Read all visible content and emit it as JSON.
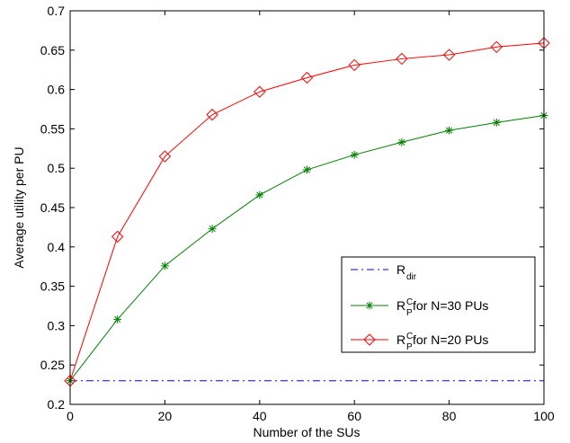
{
  "chart_data": {
    "type": "line",
    "xlabel": "Number of the SUs",
    "ylabel": "Average utility per PU",
    "xlim": [
      0,
      100
    ],
    "ylim": [
      0.2,
      0.7
    ],
    "xticks": [
      0,
      20,
      40,
      60,
      80,
      100
    ],
    "yticks": [
      0.2,
      0.25,
      0.3,
      0.35,
      0.4,
      0.45,
      0.5,
      0.55,
      0.6,
      0.65,
      0.7
    ],
    "xtick_labels": [
      "0",
      "20",
      "40",
      "60",
      "80",
      "100"
    ],
    "ytick_labels": [
      "0.2",
      "0.25",
      "0.3",
      "0.35",
      "0.4",
      "0.45",
      "0.5",
      "0.55",
      "0.6",
      "0.65",
      "0.7"
    ],
    "grid": false,
    "legend_position": "bottom-right",
    "x": [
      0,
      10,
      20,
      30,
      40,
      50,
      60,
      70,
      80,
      90,
      100
    ],
    "series": [
      {
        "legend": {
          "main": "R",
          "sub": "dir",
          "sup": "",
          "rest": ""
        },
        "color": "#0000ff",
        "dash": "dashdot",
        "marker": "none",
        "values": [
          0.23,
          0.23,
          0.23,
          0.23,
          0.23,
          0.23,
          0.23,
          0.23,
          0.23,
          0.23,
          0.23
        ]
      },
      {
        "legend": {
          "main": "R",
          "sub": "P",
          "sup": "C",
          "rest": " for N=30 PUs"
        },
        "color": "#008000",
        "dash": "solid",
        "marker": "star",
        "values": [
          0.23,
          0.308,
          0.376,
          0.423,
          0.466,
          0.498,
          0.517,
          0.533,
          0.548,
          0.558,
          0.567
        ]
      },
      {
        "legend": {
          "main": "R",
          "sub": "P",
          "sup": "C",
          "rest": " for N=20 PUs"
        },
        "color": "#ff0000",
        "dash": "solid",
        "marker": "diamond",
        "values": [
          0.23,
          0.413,
          0.515,
          0.568,
          0.597,
          0.615,
          0.631,
          0.639,
          0.644,
          0.654,
          0.659
        ]
      }
    ]
  }
}
